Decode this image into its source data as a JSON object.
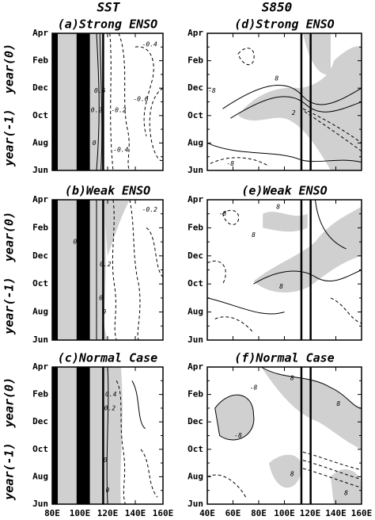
{
  "figure": {
    "column_titles": [
      "SST",
      "S850"
    ],
    "row_labels": [
      "year(-1)",
      "year(0)"
    ]
  },
  "chart_data": [
    {
      "type": "contour",
      "title": "(a)Strong ENSO",
      "xlim": [
        80,
        160
      ],
      "categories": [
        "Jun",
        "Aug",
        "Oct",
        "Dec",
        "Feb",
        "Apr"
      ],
      "contour_labels": [
        "-0.4",
        "0.6",
        "0.2",
        "-0.2",
        "-0.6",
        "0",
        "-0.4"
      ]
    },
    {
      "type": "contour",
      "title": "(b)Weak ENSO",
      "xlim": [
        80,
        160
      ],
      "categories": [
        "Jun",
        "Aug",
        "Oct",
        "Dec",
        "Feb",
        "Apr"
      ],
      "contour_labels": [
        "-0.2",
        "0.4",
        "0.2",
        "0",
        "0"
      ]
    },
    {
      "type": "contour",
      "title": "(c)Normal Case",
      "xlim": [
        80,
        160
      ],
      "categories": [
        "Jun",
        "Aug",
        "Oct",
        "Dec",
        "Feb",
        "Apr"
      ],
      "contour_labels": [
        "0.4",
        "0.2",
        "0",
        "0"
      ],
      "xticks": [
        {
          "value": 80,
          "label": "80E"
        },
        {
          "value": 100,
          "label": "100E"
        },
        {
          "value": 120,
          "label": "120E"
        },
        {
          "value": 140,
          "label": "140E"
        },
        {
          "value": 160,
          "label": "160E"
        }
      ]
    },
    {
      "type": "contour",
      "title": "(d)Strong ENSO",
      "xlim": [
        40,
        160
      ],
      "categories": [
        "Jun",
        "Aug",
        "Oct",
        "Dec",
        "Feb",
        "Apr"
      ],
      "contour_labels": [
        "-8",
        "8",
        "2",
        "-8"
      ]
    },
    {
      "type": "contour",
      "title": "(e)Weak ENSO",
      "xlim": [
        40,
        160
      ],
      "categories": [
        "Jun",
        "Aug",
        "Oct",
        "Dec",
        "Feb",
        "Apr"
      ],
      "contour_labels": [
        "-8",
        "8",
        "8",
        "8"
      ]
    },
    {
      "type": "contour",
      "title": "(f)Normal Case",
      "xlim": [
        40,
        160
      ],
      "categories": [
        "Jun",
        "Aug",
        "Oct",
        "Dec",
        "Feb",
        "Apr"
      ],
      "contour_labels": [
        "-8",
        "8",
        "8",
        "-8",
        "8",
        "8"
      ],
      "xticks": [
        {
          "value": 40,
          "label": "40E"
        },
        {
          "value": 60,
          "label": "60E"
        },
        {
          "value": 80,
          "label": "80E"
        },
        {
          "value": 100,
          "label": "100E"
        },
        {
          "value": 120,
          "label": "120E"
        },
        {
          "value": 140,
          "label": "140E"
        },
        {
          "value": 160,
          "label": "160E"
        }
      ]
    }
  ]
}
